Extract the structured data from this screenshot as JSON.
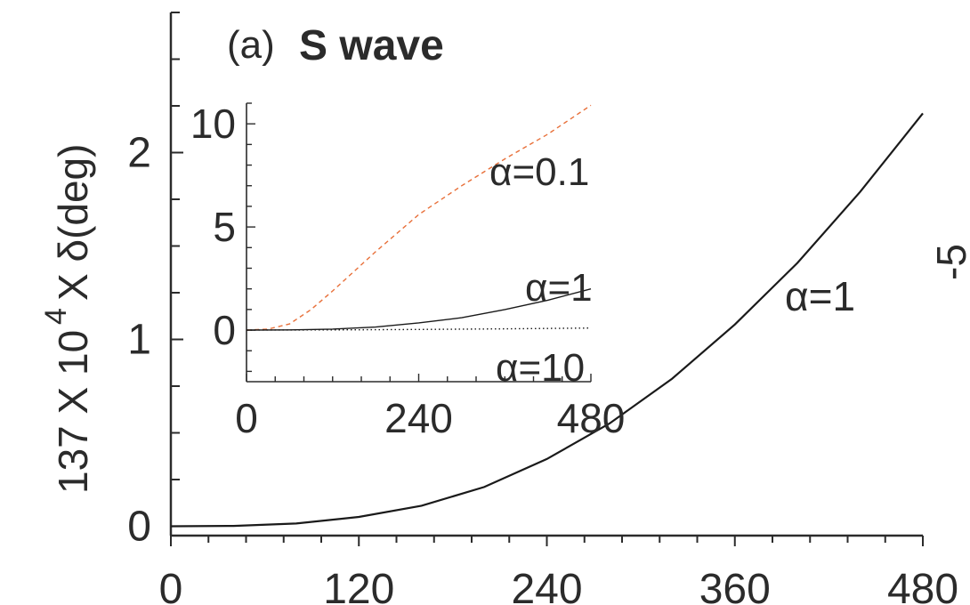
{
  "chart_data": [
    {
      "type": "line",
      "panel_label": "(a)",
      "title": "S wave",
      "ylabel": "137 X 10",
      "ylabel_exp": "4",
      "ylabel_tail": "X δ(deg)",
      "xlabel": "",
      "xlim": [
        0,
        480
      ],
      "ylim": [
        -0.05,
        2.75
      ],
      "x_ticks": [
        "0",
        "120",
        "240",
        "360",
        "480"
      ],
      "y_ticks": [
        "0",
        "1",
        "2"
      ],
      "grid": false,
      "series": [
        {
          "name": "α=1",
          "color": "#1a1a1a",
          "style": "solid",
          "x": [
            0,
            40,
            80,
            120,
            160,
            200,
            240,
            280,
            320,
            360,
            400,
            440,
            480
          ],
          "y": [
            0,
            0.002,
            0.015,
            0.05,
            0.11,
            0.21,
            0.36,
            0.55,
            0.79,
            1.08,
            1.41,
            1.79,
            2.21
          ]
        }
      ]
    },
    {
      "type": "line",
      "inset": true,
      "xlim": [
        0,
        480
      ],
      "ylim": [
        -2.5,
        11
      ],
      "x_ticks": [
        "0",
        "240",
        "480"
      ],
      "y_ticks": [
        "0",
        "5",
        "10"
      ],
      "series": [
        {
          "name": "α=0.1",
          "color": "#e8703a",
          "style": "dashed",
          "x": [
            0,
            30,
            60,
            90,
            120,
            180,
            240,
            300,
            360,
            420,
            480
          ],
          "y": [
            0,
            0.05,
            0.3,
            1.0,
            1.9,
            3.8,
            5.6,
            7.0,
            8.3,
            9.5,
            10.9
          ]
        },
        {
          "name": "α=1",
          "color": "#1a1a1a",
          "style": "solid",
          "x": [
            0,
            60,
            120,
            180,
            240,
            300,
            360,
            420,
            480
          ],
          "y": [
            0,
            0.01,
            0.05,
            0.15,
            0.35,
            0.6,
            1.0,
            1.45,
            2.0
          ]
        },
        {
          "name": "α=10",
          "color": "#1a1a1a",
          "style": "dotted",
          "x": [
            0,
            120,
            240,
            360,
            480
          ],
          "y": [
            0,
            0.01,
            0.03,
            0.06,
            0.1
          ]
        }
      ]
    }
  ],
  "partial_right_label": "-5"
}
